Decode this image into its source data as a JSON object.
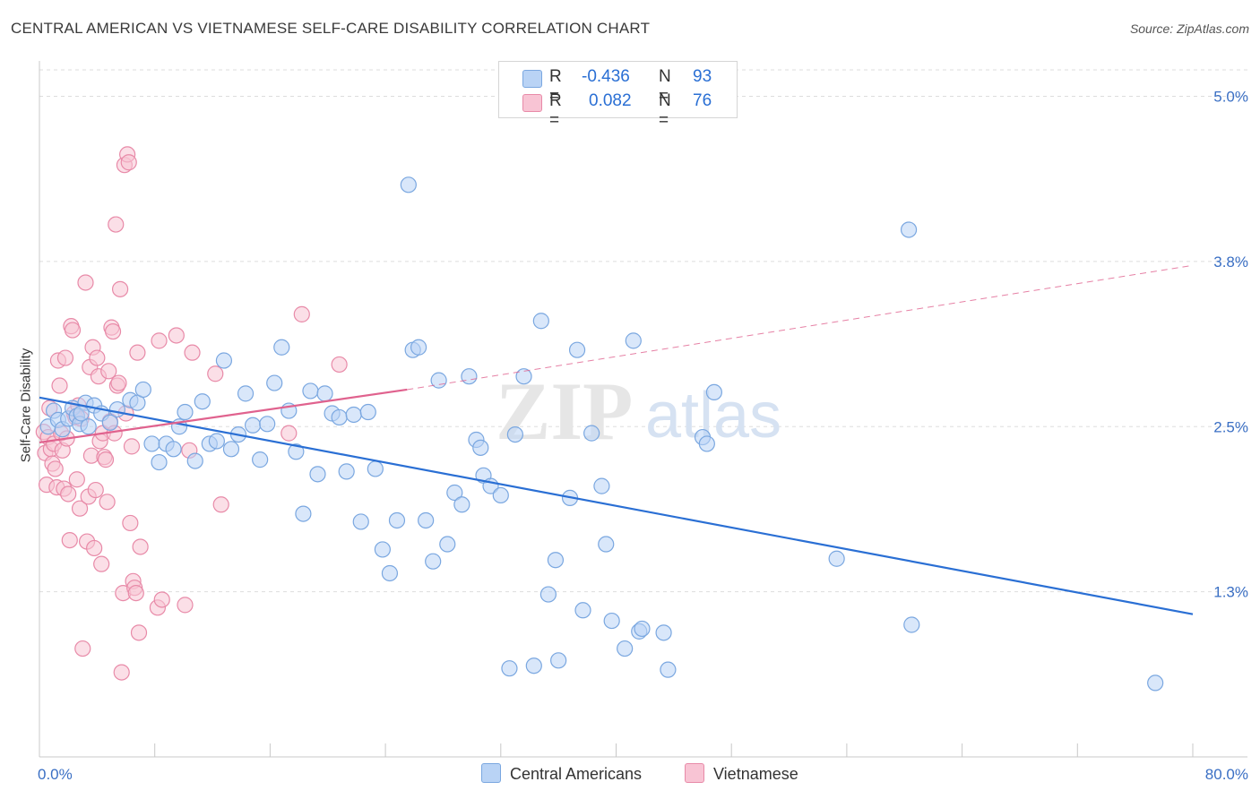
{
  "title": "CENTRAL AMERICAN VS VIETNAMESE SELF-CARE DISABILITY CORRELATION CHART",
  "source": "Source: ZipAtlas.com",
  "watermark": "ZIPatlas",
  "colors": {
    "blue_fill": "#b9d3f5",
    "blue_stroke": "#7aa7e0",
    "blue_line": "#2a6fd4",
    "pink_fill": "#f8c4d4",
    "pink_stroke": "#e88aa8",
    "pink_line": "#e0628e",
    "tick_text": "#3a6fc4",
    "grid": "#dddddd"
  },
  "stats": {
    "rows": [
      {
        "r_label": "R =",
        "r_value": "-0.436",
        "n_label": "N =",
        "n_value": "93"
      },
      {
        "r_label": "R =",
        "r_value": "0.082",
        "n_label": "N =",
        "n_value": "76"
      }
    ]
  },
  "legend": {
    "blue": "Central Americans",
    "pink": "Vietnamese"
  },
  "chart_data": {
    "type": "scatter",
    "ylabel": "Self-Care Disability",
    "xlabel": "",
    "x_range": [
      0,
      80
    ],
    "y_range": [
      0,
      5.2
    ],
    "x_tick_labels": [
      "0.0%",
      "80.0%"
    ],
    "y_tick_labels": [
      "1.3%",
      "2.5%",
      "3.8%",
      "5.0%"
    ],
    "y_ticks": [
      1.25,
      2.5,
      3.75,
      5.0
    ],
    "x_minor_ticks": [
      0,
      8,
      16,
      24,
      32,
      40,
      48,
      56,
      64,
      72,
      80
    ],
    "series": [
      {
        "name": "Central Americans",
        "color": "blue",
        "trend": {
          "x": [
            0,
            80
          ],
          "y": [
            2.72,
            1.08
          ]
        },
        "points": [
          [
            0.6,
            2.5
          ],
          [
            1.0,
            2.62
          ],
          [
            1.3,
            2.55
          ],
          [
            1.6,
            2.48
          ],
          [
            2.0,
            2.56
          ],
          [
            2.3,
            2.64
          ],
          [
            2.6,
            2.58
          ],
          [
            2.8,
            2.52
          ],
          [
            3.2,
            2.68
          ],
          [
            2.9,
            2.6
          ],
          [
            3.4,
            2.5
          ],
          [
            3.8,
            2.66
          ],
          [
            4.3,
            2.6
          ],
          [
            4.9,
            2.53
          ],
          [
            5.4,
            2.63
          ],
          [
            6.3,
            2.7
          ],
          [
            6.8,
            2.68
          ],
          [
            7.2,
            2.78
          ],
          [
            7.8,
            2.37
          ],
          [
            8.3,
            2.23
          ],
          [
            8.8,
            2.37
          ],
          [
            9.3,
            2.33
          ],
          [
            9.7,
            2.5
          ],
          [
            10.1,
            2.61
          ],
          [
            10.8,
            2.24
          ],
          [
            11.3,
            2.69
          ],
          [
            11.8,
            2.37
          ],
          [
            12.3,
            2.39
          ],
          [
            12.8,
            3.0
          ],
          [
            13.3,
            2.33
          ],
          [
            13.8,
            2.44
          ],
          [
            14.3,
            2.75
          ],
          [
            14.8,
            2.51
          ],
          [
            15.3,
            2.25
          ],
          [
            15.8,
            2.52
          ],
          [
            16.3,
            2.83
          ],
          [
            16.8,
            3.1
          ],
          [
            17.3,
            2.62
          ],
          [
            17.8,
            2.31
          ],
          [
            18.3,
            1.84
          ],
          [
            18.8,
            2.77
          ],
          [
            19.3,
            2.14
          ],
          [
            19.8,
            2.75
          ],
          [
            20.3,
            2.6
          ],
          [
            20.8,
            2.57
          ],
          [
            21.3,
            2.16
          ],
          [
            21.8,
            2.59
          ],
          [
            22.3,
            1.78
          ],
          [
            22.8,
            2.61
          ],
          [
            23.3,
            2.18
          ],
          [
            23.8,
            1.57
          ],
          [
            24.3,
            1.39
          ],
          [
            24.8,
            1.79
          ],
          [
            25.6,
            4.33
          ],
          [
            25.9,
            3.08
          ],
          [
            26.3,
            3.1
          ],
          [
            26.8,
            1.79
          ],
          [
            27.3,
            1.48
          ],
          [
            27.7,
            2.85
          ],
          [
            28.3,
            1.61
          ],
          [
            28.8,
            2.0
          ],
          [
            29.3,
            1.91
          ],
          [
            29.8,
            2.88
          ],
          [
            30.3,
            2.4
          ],
          [
            30.6,
            2.34
          ],
          [
            30.8,
            2.13
          ],
          [
            31.3,
            2.05
          ],
          [
            32.0,
            1.98
          ],
          [
            32.6,
            0.67
          ],
          [
            33.0,
            2.44
          ],
          [
            33.6,
            2.88
          ],
          [
            34.3,
            0.69
          ],
          [
            34.8,
            3.3
          ],
          [
            35.3,
            1.23
          ],
          [
            35.8,
            1.49
          ],
          [
            36.0,
            0.73
          ],
          [
            36.8,
            1.96
          ],
          [
            37.3,
            3.08
          ],
          [
            37.7,
            1.11
          ],
          [
            38.3,
            2.45
          ],
          [
            39.0,
            2.05
          ],
          [
            39.3,
            1.61
          ],
          [
            39.7,
            1.03
          ],
          [
            40.6,
            0.82
          ],
          [
            41.2,
            3.15
          ],
          [
            41.6,
            0.95
          ],
          [
            41.8,
            0.97
          ],
          [
            43.3,
            0.94
          ],
          [
            43.6,
            0.66
          ],
          [
            46.0,
            2.42
          ],
          [
            46.3,
            2.37
          ],
          [
            46.8,
            2.76
          ],
          [
            55.3,
            1.5
          ],
          [
            60.3,
            3.99
          ],
          [
            60.5,
            1.0
          ],
          [
            77.4,
            0.56
          ]
        ]
      },
      {
        "name": "Vietnamese",
        "color": "pink",
        "trend": {
          "x": [
            0,
            25.5
          ],
          "y": [
            2.38,
            2.78
          ]
        },
        "trend_dashed": {
          "x": [
            25.5,
            80
          ],
          "y": [
            2.78,
            3.72
          ]
        },
        "points": [
          [
            0.3,
            2.46
          ],
          [
            0.4,
            2.3
          ],
          [
            0.5,
            2.06
          ],
          [
            0.6,
            2.42
          ],
          [
            0.7,
            2.64
          ],
          [
            0.8,
            2.33
          ],
          [
            0.9,
            2.22
          ],
          [
            1.0,
            2.37
          ],
          [
            1.1,
            2.18
          ],
          [
            1.2,
            2.04
          ],
          [
            1.3,
            3.0
          ],
          [
            1.4,
            2.81
          ],
          [
            1.5,
            2.45
          ],
          [
            1.6,
            2.32
          ],
          [
            1.7,
            2.03
          ],
          [
            1.8,
            3.02
          ],
          [
            1.9,
            2.41
          ],
          [
            2.0,
            1.99
          ],
          [
            2.1,
            1.64
          ],
          [
            2.2,
            3.26
          ],
          [
            2.3,
            3.23
          ],
          [
            2.4,
            2.6
          ],
          [
            2.5,
            2.57
          ],
          [
            2.6,
            2.1
          ],
          [
            2.7,
            2.66
          ],
          [
            2.8,
            1.88
          ],
          [
            2.9,
            2.56
          ],
          [
            3.0,
            0.82
          ],
          [
            3.2,
            3.59
          ],
          [
            3.3,
            1.63
          ],
          [
            3.4,
            1.97
          ],
          [
            3.5,
            2.95
          ],
          [
            3.6,
            2.28
          ],
          [
            3.7,
            3.1
          ],
          [
            3.8,
            1.58
          ],
          [
            3.9,
            2.02
          ],
          [
            4.0,
            3.02
          ],
          [
            4.1,
            2.88
          ],
          [
            4.2,
            2.39
          ],
          [
            4.3,
            1.46
          ],
          [
            4.4,
            2.45
          ],
          [
            4.5,
            2.27
          ],
          [
            4.6,
            2.25
          ],
          [
            4.7,
            1.93
          ],
          [
            4.8,
            2.92
          ],
          [
            4.9,
            2.54
          ],
          [
            5.0,
            3.25
          ],
          [
            5.1,
            3.22
          ],
          [
            5.2,
            2.45
          ],
          [
            5.3,
            4.03
          ],
          [
            5.4,
            2.81
          ],
          [
            5.5,
            2.83
          ],
          [
            5.6,
            3.54
          ],
          [
            5.7,
            0.64
          ],
          [
            5.8,
            1.24
          ],
          [
            5.9,
            4.48
          ],
          [
            6.0,
            2.6
          ],
          [
            6.1,
            4.56
          ],
          [
            6.2,
            4.5
          ],
          [
            6.3,
            1.77
          ],
          [
            6.4,
            2.35
          ],
          [
            6.5,
            1.33
          ],
          [
            6.6,
            1.28
          ],
          [
            6.7,
            1.24
          ],
          [
            6.8,
            3.06
          ],
          [
            6.9,
            0.94
          ],
          [
            7.0,
            1.59
          ],
          [
            8.2,
            1.13
          ],
          [
            8.3,
            3.15
          ],
          [
            8.5,
            1.19
          ],
          [
            9.5,
            3.19
          ],
          [
            10.1,
            1.15
          ],
          [
            10.4,
            2.32
          ],
          [
            10.6,
            3.06
          ],
          [
            12.2,
            2.9
          ],
          [
            12.6,
            1.91
          ],
          [
            17.3,
            2.45
          ],
          [
            18.2,
            3.35
          ],
          [
            20.8,
            2.97
          ]
        ]
      }
    ]
  }
}
